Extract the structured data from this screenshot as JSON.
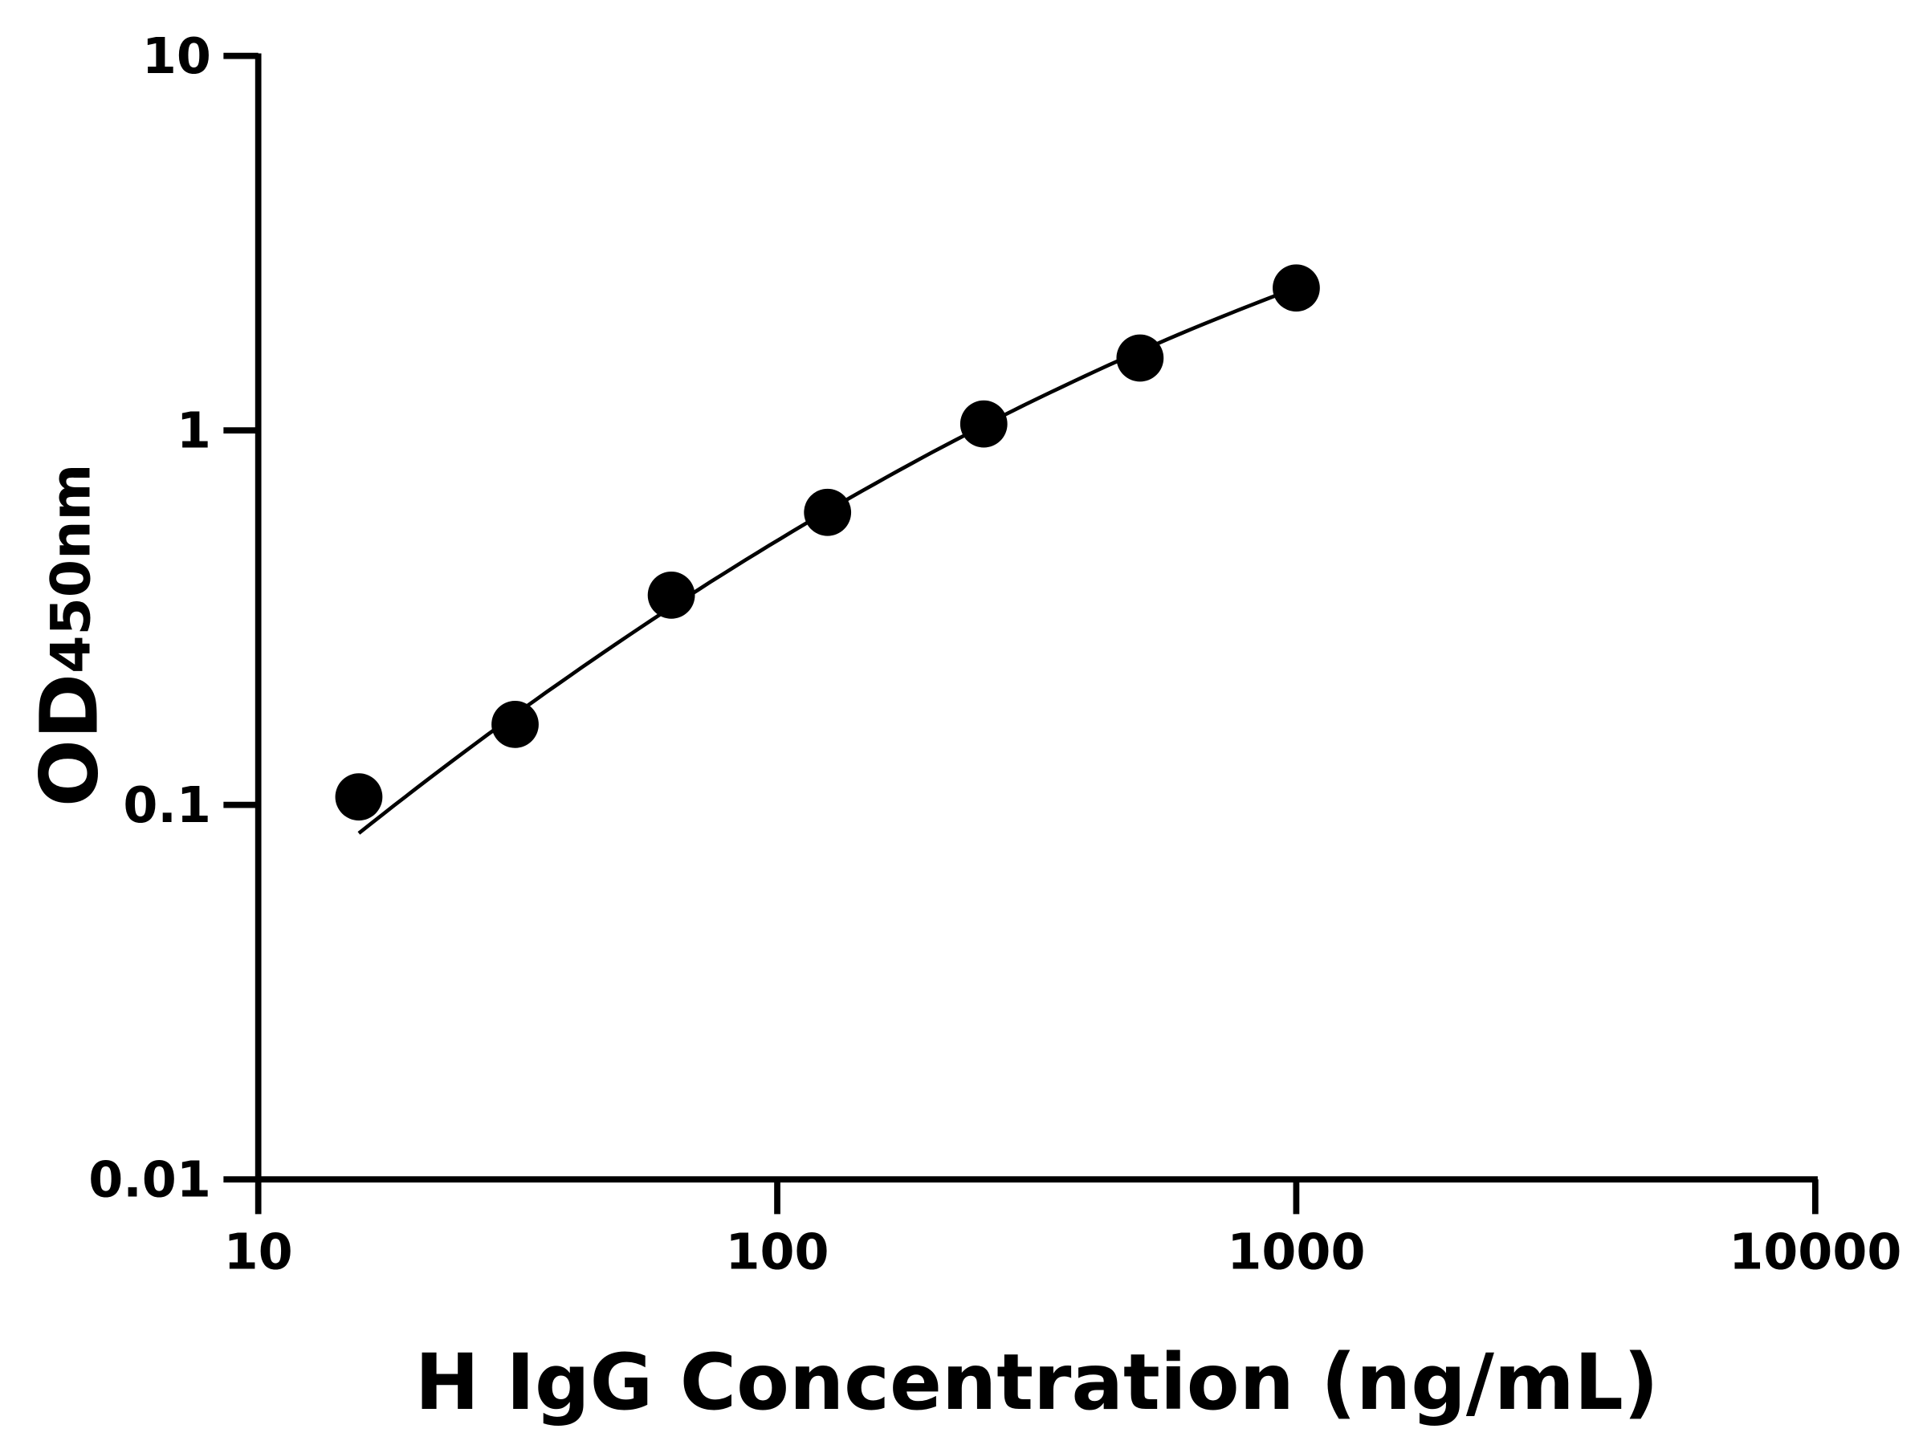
{
  "chart_data": {
    "type": "scatter",
    "title": "",
    "xlabel": "H IgG Concentration (ng/mL)",
    "ylabel_main": "OD",
    "ylabel_sub": "450nm",
    "x_scale": "log",
    "y_scale": "log",
    "xlim": [
      10,
      10000
    ],
    "ylim": [
      0.01,
      10
    ],
    "x_ticks": [
      "10",
      "100",
      "1000",
      "10000"
    ],
    "y_ticks": [
      "0.01",
      "0.1",
      "1",
      "10"
    ],
    "grid": false,
    "points": [
      {
        "x": 15.625,
        "y": 0.105
      },
      {
        "x": 31.25,
        "y": 0.164
      },
      {
        "x": 62.5,
        "y": 0.363
      },
      {
        "x": 125,
        "y": 0.604
      },
      {
        "x": 250,
        "y": 1.04
      },
      {
        "x": 500,
        "y": 1.56
      },
      {
        "x": 1000,
        "y": 2.4
      }
    ],
    "fit_curve": {
      "x_start": 15.625,
      "x_end": 1000,
      "y_start": 0.084,
      "y_end": 2.4
    },
    "colors": {
      "points": "#000000",
      "curve": "#000000",
      "axes": "#000000"
    }
  }
}
